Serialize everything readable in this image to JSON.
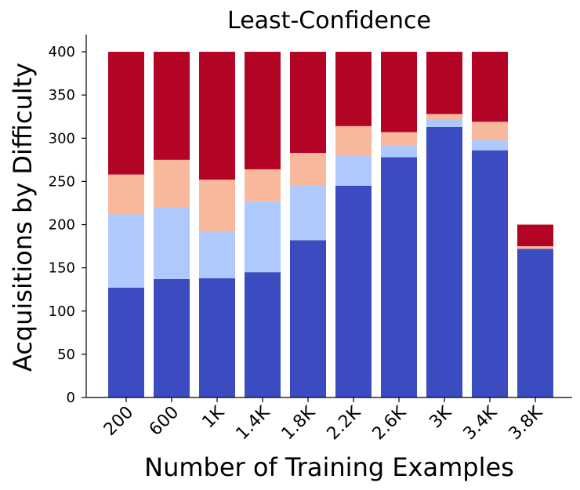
{
  "chart_data": {
    "type": "bar",
    "stacked": true,
    "title": "Least-Confidence",
    "xlabel": "Number of Training Examples",
    "ylabel": "Acquisitions by Difficulty",
    "ylim": [
      0,
      420
    ],
    "yticks": [
      0,
      50,
      100,
      150,
      200,
      250,
      300,
      350,
      400
    ],
    "categories": [
      "200",
      "600",
      "1K",
      "1.4K",
      "1.8K",
      "2.2K",
      "2.6K",
      "3K",
      "3.4K",
      "3.8K"
    ],
    "grid": false,
    "legend": "none",
    "series": [
      {
        "color": "#3b4cc0",
        "values": [
          127,
          137,
          138,
          145,
          182,
          245,
          278,
          313,
          286,
          172
        ]
      },
      {
        "color": "#aec9fc",
        "values": [
          85,
          83,
          54,
          82,
          63,
          35,
          14,
          9,
          12,
          0
        ]
      },
      {
        "color": "#f7b89c",
        "values": [
          46,
          55,
          60,
          37,
          38,
          34,
          15,
          6,
          21,
          3
        ]
      },
      {
        "color": "#b40426",
        "values": [
          142,
          125,
          148,
          136,
          117,
          86,
          93,
          72,
          81,
          25
        ]
      }
    ]
  }
}
